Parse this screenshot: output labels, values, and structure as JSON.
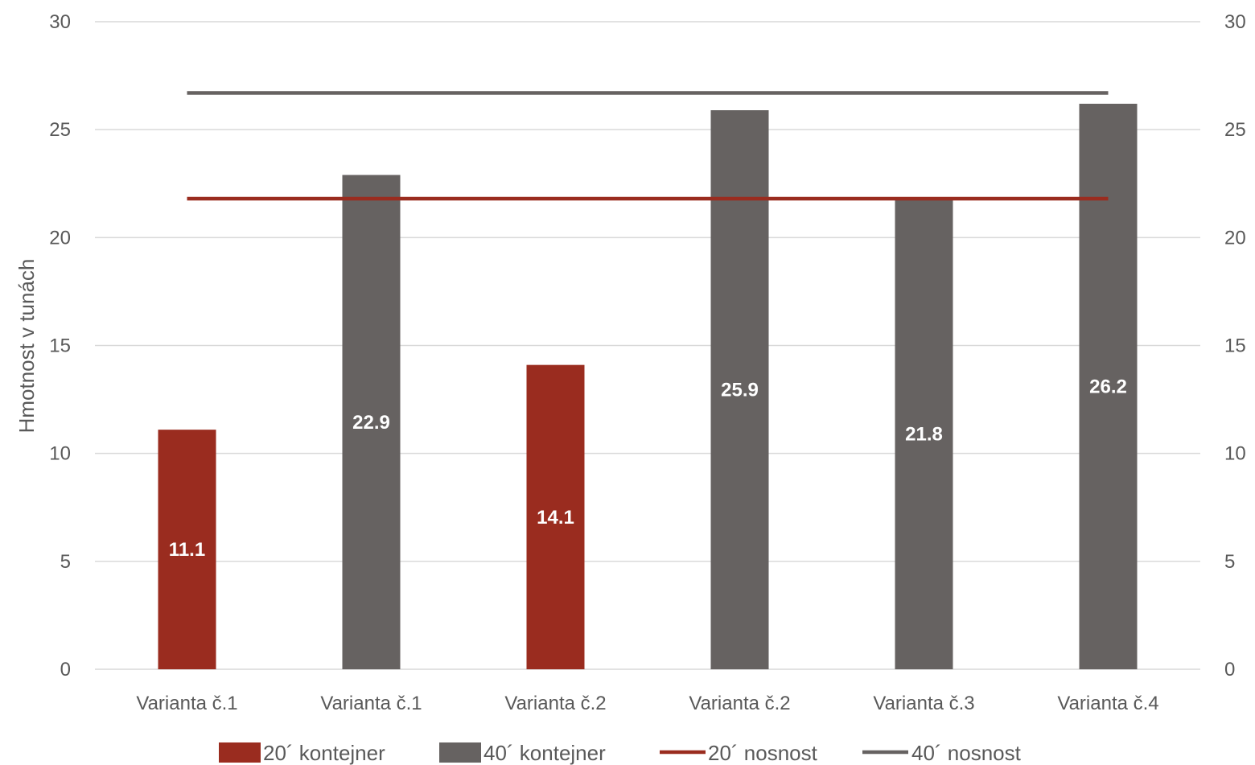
{
  "chart_data": {
    "type": "bar",
    "ylabel": "Hmotnost v tunách",
    "ylim": [
      0,
      30
    ],
    "y_ticks": [
      0,
      5,
      10,
      15,
      20,
      25,
      30
    ],
    "y2_ticks": [
      0,
      5,
      10,
      15,
      20,
      25,
      30
    ],
    "grid": true,
    "legend_position": "bottom",
    "categories": [
      "Varianta č.1",
      "Varianta č.1",
      "Varianta č.2",
      "Varianta č.2",
      "Varianta č.3",
      "Varianta č.4"
    ],
    "bars": [
      {
        "category_index": 0,
        "value": 11.1,
        "label": "11.1",
        "series": "20´ kontejner"
      },
      {
        "category_index": 1,
        "value": 22.9,
        "label": "22.9",
        "series": "40´ kontejner"
      },
      {
        "category_index": 2,
        "value": 14.1,
        "label": "14.1",
        "series": "20´ kontejner"
      },
      {
        "category_index": 3,
        "value": 25.9,
        "label": "25.9",
        "series": "40´ kontejner"
      },
      {
        "category_index": 4,
        "value": 21.8,
        "label": "21.8",
        "series": "40´ kontejner"
      },
      {
        "category_index": 5,
        "value": 26.2,
        "label": "26.2",
        "series": "40´ kontejner"
      }
    ],
    "lines": [
      {
        "name": "20´ nosnost",
        "value": 21.8
      },
      {
        "name": "40´ nosnost",
        "value": 26.7
      }
    ],
    "legend": [
      {
        "name": "20´ kontejner",
        "kind": "bar",
        "color": "#9A2C1F"
      },
      {
        "name": "40´ kontejner",
        "kind": "bar",
        "color": "#666261"
      },
      {
        "name": "20´ nosnost",
        "kind": "line",
        "color": "#9A2C1F"
      },
      {
        "name": "40´ nosnost",
        "kind": "line",
        "color": "#666261"
      }
    ],
    "colors": {
      "20´ kontejner": "#9A2C1F",
      "40´ kontejner": "#666261",
      "20´ nosnost": "#9A2C1F",
      "40´ nosnost": "#666261",
      "grid": "#D9D9D9",
      "axis_text": "#595959"
    }
  }
}
